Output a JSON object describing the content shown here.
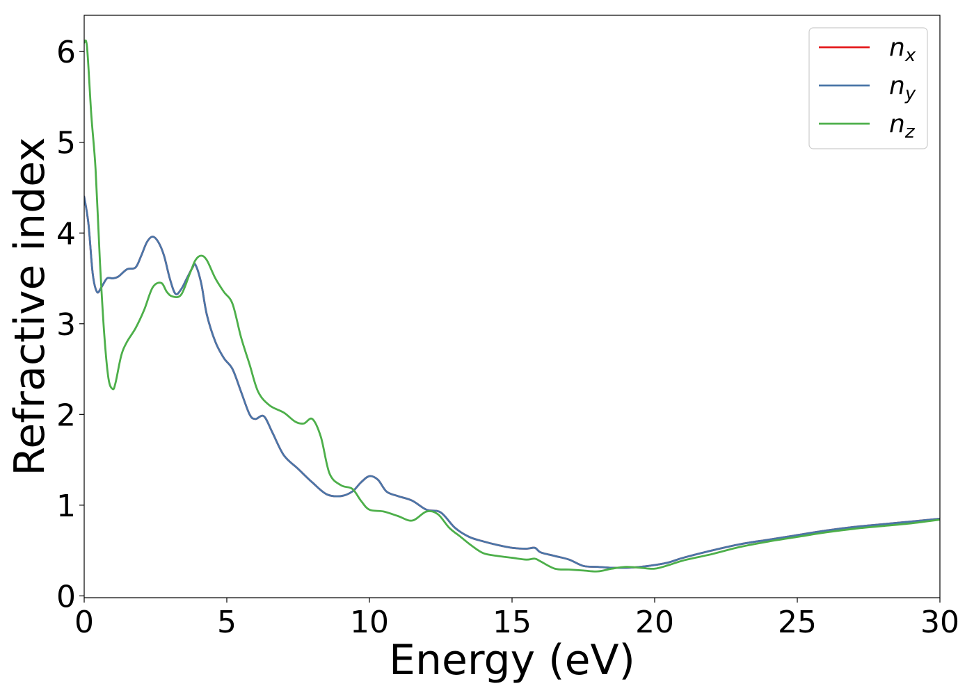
{
  "chart_data": {
    "type": "line",
    "xlabel": "Energy (eV)",
    "ylabel": "Refractive index",
    "xlim": [
      0,
      30
    ],
    "ylim": [
      -0.02,
      6.4
    ],
    "xticks": [
      0,
      5,
      10,
      15,
      20,
      25,
      30
    ],
    "yticks": [
      0,
      1,
      2,
      3,
      4,
      5,
      6
    ],
    "grid": false,
    "legend_position": "top-right",
    "series": [
      {
        "name": "n",
        "subscript": "x",
        "color": "#e41a1c",
        "x": [
          0,
          0.15,
          0.3,
          0.45,
          0.6,
          0.8,
          1.0,
          1.2,
          1.5,
          1.8,
          2.0,
          2.2,
          2.4,
          2.6,
          2.8,
          3.0,
          3.2,
          3.4,
          3.6,
          3.8,
          3.9,
          4.1,
          4.3,
          4.6,
          4.9,
          5.2,
          5.5,
          5.8,
          6.0,
          6.3,
          6.6,
          7.0,
          7.5,
          8.0,
          8.5,
          9.0,
          9.4,
          9.7,
          10.0,
          10.3,
          10.6,
          11.0,
          11.5,
          12.0,
          12.5,
          13.0,
          13.5,
          14.0,
          14.5,
          15.0,
          15.5,
          15.8,
          16.0,
          16.5,
          17.0,
          17.5,
          18.0,
          18.5,
          19.0,
          19.5,
          20.0,
          20.5,
          21.0,
          22.0,
          23.0,
          24.0,
          25.0,
          26.0,
          27.0,
          28.0,
          29.0,
          30.0
        ],
        "values": [
          4.4,
          4.1,
          3.55,
          3.35,
          3.4,
          3.5,
          3.5,
          3.52,
          3.6,
          3.62,
          3.75,
          3.9,
          3.96,
          3.9,
          3.75,
          3.5,
          3.33,
          3.38,
          3.5,
          3.62,
          3.65,
          3.45,
          3.1,
          2.8,
          2.62,
          2.5,
          2.25,
          2.0,
          1.95,
          1.98,
          1.8,
          1.55,
          1.4,
          1.25,
          1.12,
          1.1,
          1.15,
          1.25,
          1.32,
          1.28,
          1.15,
          1.1,
          1.05,
          0.95,
          0.92,
          0.75,
          0.65,
          0.6,
          0.56,
          0.53,
          0.52,
          0.53,
          0.48,
          0.44,
          0.4,
          0.33,
          0.32,
          0.31,
          0.31,
          0.32,
          0.34,
          0.37,
          0.42,
          0.5,
          0.57,
          0.62,
          0.67,
          0.72,
          0.76,
          0.79,
          0.82,
          0.85
        ]
      },
      {
        "name": "n",
        "subscript": "y",
        "color": "#4a76a8",
        "x": [
          0,
          0.15,
          0.3,
          0.45,
          0.6,
          0.8,
          1.0,
          1.2,
          1.5,
          1.8,
          2.0,
          2.2,
          2.4,
          2.6,
          2.8,
          3.0,
          3.2,
          3.4,
          3.6,
          3.8,
          3.9,
          4.1,
          4.3,
          4.6,
          4.9,
          5.2,
          5.5,
          5.8,
          6.0,
          6.3,
          6.6,
          7.0,
          7.5,
          8.0,
          8.5,
          9.0,
          9.4,
          9.7,
          10.0,
          10.3,
          10.6,
          11.0,
          11.5,
          12.0,
          12.5,
          13.0,
          13.5,
          14.0,
          14.5,
          15.0,
          15.5,
          15.8,
          16.0,
          16.5,
          17.0,
          17.5,
          18.0,
          18.5,
          19.0,
          19.5,
          20.0,
          20.5,
          21.0,
          22.0,
          23.0,
          24.0,
          25.0,
          26.0,
          27.0,
          28.0,
          29.0,
          30.0
        ],
        "values": [
          4.4,
          4.1,
          3.55,
          3.35,
          3.4,
          3.5,
          3.5,
          3.52,
          3.6,
          3.62,
          3.75,
          3.9,
          3.96,
          3.9,
          3.75,
          3.5,
          3.33,
          3.38,
          3.5,
          3.62,
          3.65,
          3.45,
          3.1,
          2.8,
          2.62,
          2.5,
          2.25,
          2.0,
          1.95,
          1.98,
          1.8,
          1.55,
          1.4,
          1.25,
          1.12,
          1.1,
          1.15,
          1.25,
          1.32,
          1.28,
          1.15,
          1.1,
          1.05,
          0.95,
          0.92,
          0.75,
          0.65,
          0.6,
          0.56,
          0.53,
          0.52,
          0.53,
          0.48,
          0.44,
          0.4,
          0.33,
          0.32,
          0.31,
          0.31,
          0.32,
          0.34,
          0.37,
          0.42,
          0.5,
          0.57,
          0.62,
          0.67,
          0.72,
          0.76,
          0.79,
          0.82,
          0.85
        ]
      },
      {
        "name": "n",
        "subscript": "z",
        "color": "#4daf4a",
        "x": [
          0,
          0.1,
          0.25,
          0.4,
          0.55,
          0.7,
          0.85,
          1.0,
          1.1,
          1.3,
          1.5,
          1.8,
          2.1,
          2.4,
          2.7,
          2.9,
          3.1,
          3.4,
          3.7,
          3.9,
          4.1,
          4.3,
          4.6,
          4.9,
          5.2,
          5.5,
          5.8,
          6.1,
          6.5,
          7.0,
          7.4,
          7.7,
          8.0,
          8.3,
          8.6,
          9.0,
          9.4,
          9.7,
          10.0,
          10.5,
          11.0,
          11.5,
          12.0,
          12.4,
          12.8,
          13.2,
          13.6,
          14.0,
          14.5,
          15.0,
          15.5,
          15.8,
          16.0,
          16.5,
          17.0,
          17.5,
          18.0,
          18.5,
          19.0,
          19.5,
          20.0,
          20.5,
          21.0,
          22.0,
          23.0,
          24.0,
          25.0,
          26.0,
          27.0,
          28.0,
          29.0,
          30.0
        ],
        "values": [
          6.1,
          6.05,
          5.3,
          4.7,
          3.7,
          2.9,
          2.4,
          2.28,
          2.35,
          2.65,
          2.8,
          2.95,
          3.15,
          3.4,
          3.45,
          3.35,
          3.3,
          3.32,
          3.55,
          3.7,
          3.75,
          3.7,
          3.5,
          3.35,
          3.22,
          2.85,
          2.55,
          2.25,
          2.1,
          2.02,
          1.92,
          1.9,
          1.95,
          1.75,
          1.35,
          1.22,
          1.18,
          1.05,
          0.95,
          0.93,
          0.88,
          0.83,
          0.93,
          0.9,
          0.75,
          0.65,
          0.55,
          0.47,
          0.44,
          0.42,
          0.4,
          0.41,
          0.38,
          0.3,
          0.29,
          0.28,
          0.27,
          0.3,
          0.32,
          0.31,
          0.3,
          0.34,
          0.39,
          0.46,
          0.54,
          0.6,
          0.65,
          0.7,
          0.74,
          0.77,
          0.8,
          0.84
        ]
      }
    ]
  }
}
